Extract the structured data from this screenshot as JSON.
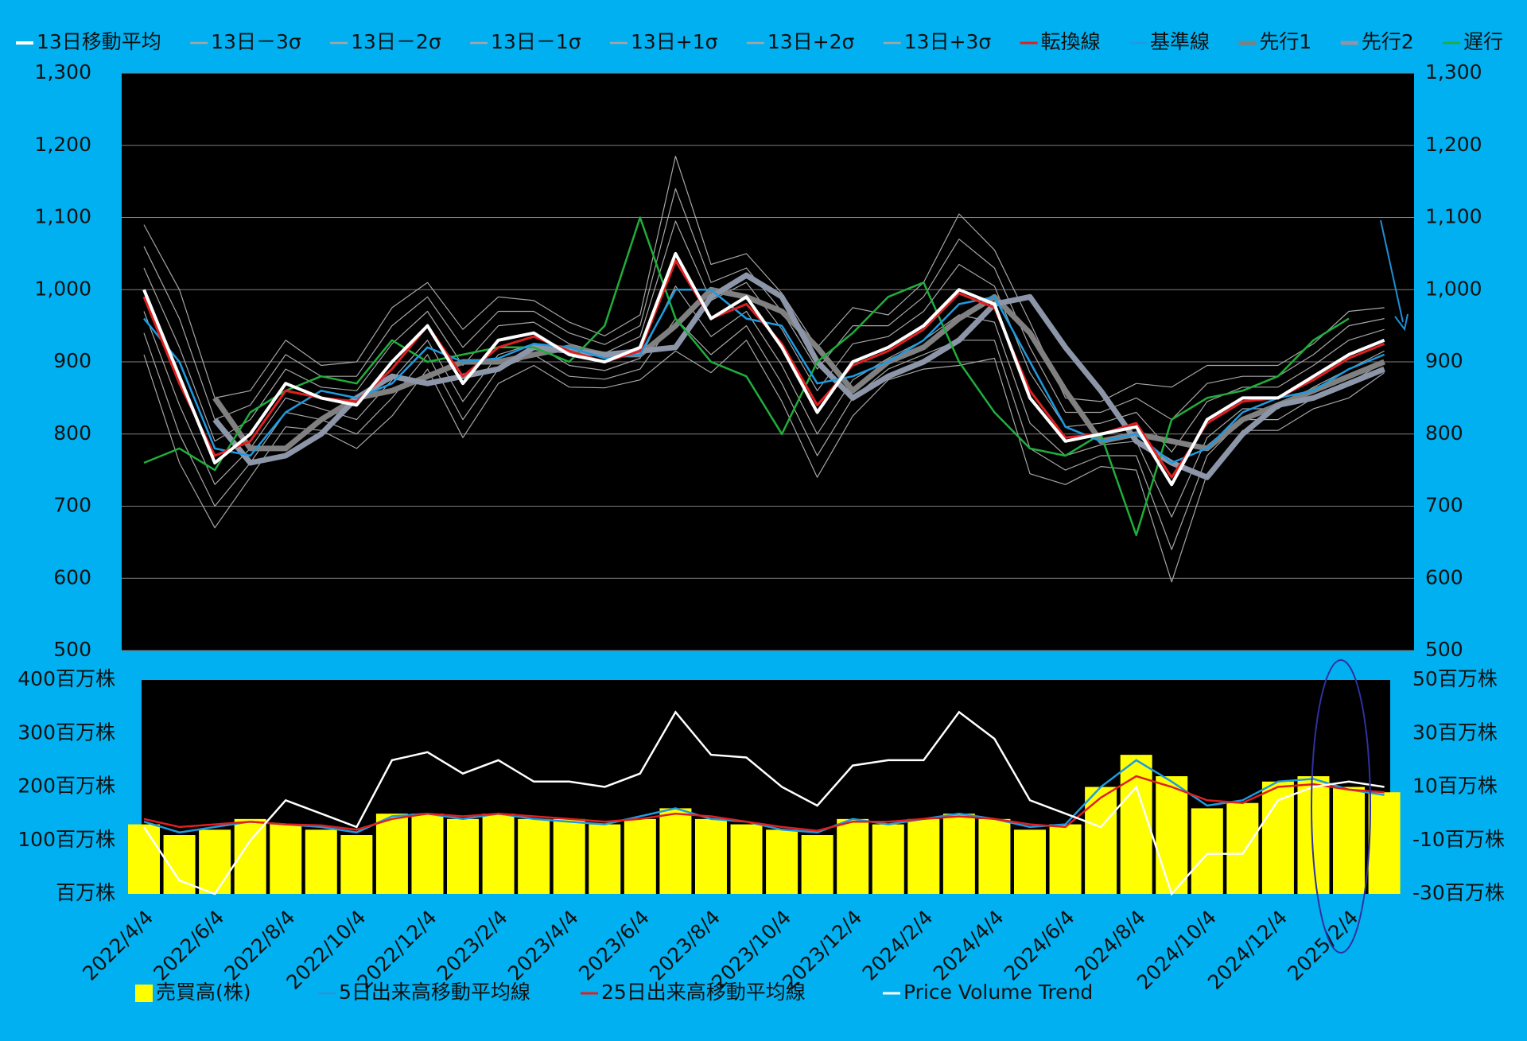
{
  "chart_data": [
    {
      "type": "line",
      "ylim": [
        500,
        1300
      ],
      "yticks": [
        500,
        600,
        700,
        800,
        900,
        {
          "value": 1000,
          "label": "1,000"
        },
        {
          "value": 1100,
          "label": "1,100"
        },
        {
          "value": 1200,
          "label": "1,200"
        },
        {
          "value": 1300,
          "label": "1,300"
        }
      ],
      "y2lim": [
        500,
        1300
      ],
      "y2ticks": [
        500,
        600,
        700,
        800,
        900,
        {
          "value": 1000,
          "label": "1,000"
        },
        {
          "value": 1100,
          "label": "1,100"
        },
        {
          "value": 1200,
          "label": "1,200"
        },
        {
          "value": 1300,
          "label": "1,300"
        }
      ],
      "grid": true,
      "legend": "top",
      "series": [
        {
          "name": "13日移動平均",
          "color": "#ffffff",
          "values": [
            1000,
            880,
            760,
            800,
            870,
            850,
            840,
            900,
            950,
            870,
            930,
            940,
            910,
            900,
            920,
            1050,
            960,
            990,
            920,
            830,
            900,
            920,
            950,
            1000,
            980,
            850,
            790,
            800,
            810,
            730,
            820,
            850,
            850,
            880,
            910,
            930
          ]
        },
        {
          "name": "13日－3σ",
          "color": "#a6a6a6",
          "values": [
            910,
            760,
            670,
            740,
            810,
            805,
            780,
            825,
            890,
            795,
            870,
            895,
            865,
            864,
            875,
            915,
            885,
            930,
            845,
            740,
            825,
            875,
            890,
            895,
            905,
            745,
            730,
            755,
            750,
            595,
            745,
            805,
            805,
            835,
            850,
            885
          ]
        },
        {
          "name": "13日－2σ",
          "color": "#a6a6a6",
          "values": [
            940,
            800,
            700,
            760,
            830,
            820,
            800,
            850,
            910,
            820,
            890,
            910,
            880,
            876,
            890,
            960,
            910,
            950,
            870,
            770,
            850,
            890,
            910,
            930,
            930,
            780,
            750,
            770,
            770,
            640,
            770,
            820,
            820,
            850,
            870,
            900
          ]
        },
        {
          "name": "13日－1σ",
          "color": "#a6a6a6",
          "values": [
            970,
            840,
            730,
            780,
            850,
            835,
            820,
            875,
            930,
            845,
            910,
            925,
            895,
            888,
            905,
            1005,
            935,
            970,
            895,
            800,
            875,
            905,
            930,
            965,
            955,
            815,
            770,
            785,
            790,
            685,
            795,
            835,
            835,
            865,
            890,
            915
          ]
        },
        {
          "name": "13日+1σ",
          "color": "#a6a6a6",
          "values": [
            1030,
            920,
            790,
            820,
            890,
            865,
            860,
            925,
            970,
            895,
            950,
            955,
            925,
            912,
            935,
            1095,
            985,
            1010,
            945,
            860,
            925,
            935,
            970,
            1035,
            1005,
            885,
            810,
            815,
            830,
            775,
            845,
            865,
            865,
            895,
            930,
            945
          ]
        },
        {
          "name": "13日+2σ",
          "color": "#a6a6a6",
          "values": [
            1060,
            960,
            820,
            840,
            910,
            880,
            880,
            950,
            990,
            920,
            970,
            970,
            940,
            924,
            950,
            1140,
            1010,
            1030,
            970,
            890,
            950,
            950,
            990,
            1070,
            1030,
            920,
            830,
            830,
            850,
            820,
            870,
            880,
            880,
            910,
            950,
            960
          ]
        },
        {
          "name": "13日+3σ",
          "color": "#a6a6a6",
          "values": [
            1090,
            1000,
            850,
            860,
            930,
            895,
            900,
            975,
            1010,
            945,
            990,
            985,
            955,
            936,
            965,
            1185,
            1035,
            1050,
            995,
            920,
            975,
            965,
            1010,
            1105,
            1055,
            955,
            850,
            845,
            870,
            865,
            895,
            895,
            895,
            925,
            970,
            975
          ]
        },
        {
          "name": "転換線",
          "color": "#e02020",
          "values": [
            990,
            870,
            770,
            790,
            860,
            850,
            845,
            890,
            950,
            880,
            920,
            935,
            915,
            900,
            915,
            1040,
            960,
            980,
            925,
            840,
            895,
            915,
            945,
            995,
            975,
            860,
            795,
            800,
            815,
            740,
            815,
            845,
            850,
            875,
            905,
            925
          ]
        },
        {
          "name": "基準線",
          "color": "#1e9be0",
          "values": [
            960,
            900,
            780,
            770,
            830,
            860,
            850,
            870,
            920,
            900,
            905,
            925,
            920,
            905,
            910,
            1000,
            1000,
            960,
            950,
            870,
            880,
            900,
            930,
            980,
            990,
            900,
            810,
            790,
            800,
            760,
            780,
            830,
            850,
            860,
            890,
            910
          ]
        },
        {
          "name": "先行1",
          "color": "#808080",
          "values": [
            null,
            null,
            850,
            780,
            780,
            820,
            850,
            860,
            880,
            900,
            900,
            910,
            920,
            910,
            910,
            950,
            1000,
            990,
            970,
            920,
            860,
            900,
            920,
            960,
            990,
            940,
            860,
            790,
            800,
            790,
            780,
            820,
            840,
            860,
            880,
            900
          ]
        },
        {
          "name": "先行2",
          "color": "#8c96a8",
          "values": [
            null,
            null,
            820,
            760,
            770,
            800,
            850,
            880,
            870,
            880,
            890,
            920,
            915,
            910,
            915,
            920,
            990,
            1020,
            990,
            900,
            850,
            880,
            900,
            930,
            980,
            990,
            920,
            860,
            790,
            760,
            740,
            800,
            840,
            850,
            870,
            890
          ]
        },
        {
          "name": "遅行",
          "color": "#1fae3c",
          "values": [
            760,
            780,
            750,
            830,
            860,
            880,
            870,
            930,
            900,
            910,
            920,
            920,
            900,
            950,
            1100,
            960,
            900,
            880,
            800,
            900,
            940,
            990,
            1010,
            900,
            830,
            780,
            770,
            800,
            660,
            820,
            850,
            860,
            880,
            930,
            960,
            null
          ]
        }
      ]
    },
    {
      "type": "bar",
      "categories": [
        "2022/4/4",
        null,
        "2022/6/4",
        null,
        "2022/8/4",
        null,
        "2022/10/4",
        null,
        "2022/12/4",
        null,
        "2023/2/4",
        null,
        "2023/4/4",
        null,
        "2023/6/4",
        null,
        "2023/8/4",
        null,
        "2023/10/4",
        null,
        "2023/12/4",
        null,
        "2024/2/4",
        null,
        "2024/4/4",
        null,
        "2024/6/4",
        null,
        "2024/8/4",
        null,
        "2024/10/4",
        null,
        "2024/12/4",
        null,
        "2025/2/4",
        null
      ],
      "ylim": [
        0,
        400
      ],
      "yticks": [
        {
          "value": 0,
          "label": "百万株"
        },
        {
          "value": 100,
          "label": "100百万株"
        },
        {
          "value": 200,
          "label": "200百万株"
        },
        {
          "value": 300,
          "label": "300百万株"
        },
        {
          "value": 400,
          "label": "400百万株"
        }
      ],
      "y2lim": [
        -30,
        50
      ],
      "y2ticks": [
        {
          "value": -30,
          "label": "-30百万株"
        },
        {
          "value": -10,
          "label": "-10百万株"
        },
        {
          "value": 10,
          "label": "10百万株"
        },
        {
          "value": 30,
          "label": "30百万株"
        },
        {
          "value": 50,
          "label": "50百万株"
        }
      ],
      "legend": "bottom",
      "series": [
        {
          "name": "売買高(株)",
          "type": "bar",
          "color": "#ffff00",
          "values": [
            130,
            110,
            120,
            140,
            130,
            120,
            110,
            150,
            150,
            140,
            150,
            140,
            140,
            130,
            140,
            160,
            140,
            130,
            120,
            110,
            140,
            130,
            140,
            150,
            140,
            120,
            130,
            200,
            260,
            220,
            160,
            170,
            210,
            220,
            200,
            190
          ]
        },
        {
          "name": "5日出来高移動平均線",
          "type": "line",
          "color": "#1e9be0",
          "values": [
            135,
            115,
            125,
            135,
            130,
            125,
            115,
            145,
            150,
            140,
            150,
            140,
            135,
            130,
            145,
            160,
            140,
            135,
            120,
            115,
            140,
            130,
            140,
            150,
            140,
            125,
            130,
            200,
            250,
            210,
            165,
            175,
            210,
            215,
            195,
            185
          ]
        },
        {
          "name": "25日出来高移動平均線",
          "type": "line",
          "color": "#e02020",
          "values": [
            140,
            125,
            130,
            135,
            130,
            128,
            120,
            140,
            150,
            145,
            150,
            145,
            140,
            135,
            140,
            150,
            145,
            135,
            125,
            118,
            135,
            135,
            140,
            145,
            140,
            130,
            125,
            180,
            220,
            200,
            175,
            170,
            200,
            205,
            195,
            190
          ]
        },
        {
          "name": "Price Volume Trend",
          "type": "line",
          "axis": "y2",
          "color": "#ffffff",
          "values": [
            -5,
            -25,
            -30,
            -10,
            5,
            0,
            -5,
            20,
            23,
            15,
            20,
            12,
            12,
            10,
            15,
            38,
            22,
            21,
            10,
            3,
            18,
            20,
            20,
            38,
            28,
            5,
            0,
            -5,
            10,
            -30,
            -15,
            -15,
            5,
            10,
            12,
            10
          ]
        }
      ]
    }
  ]
}
